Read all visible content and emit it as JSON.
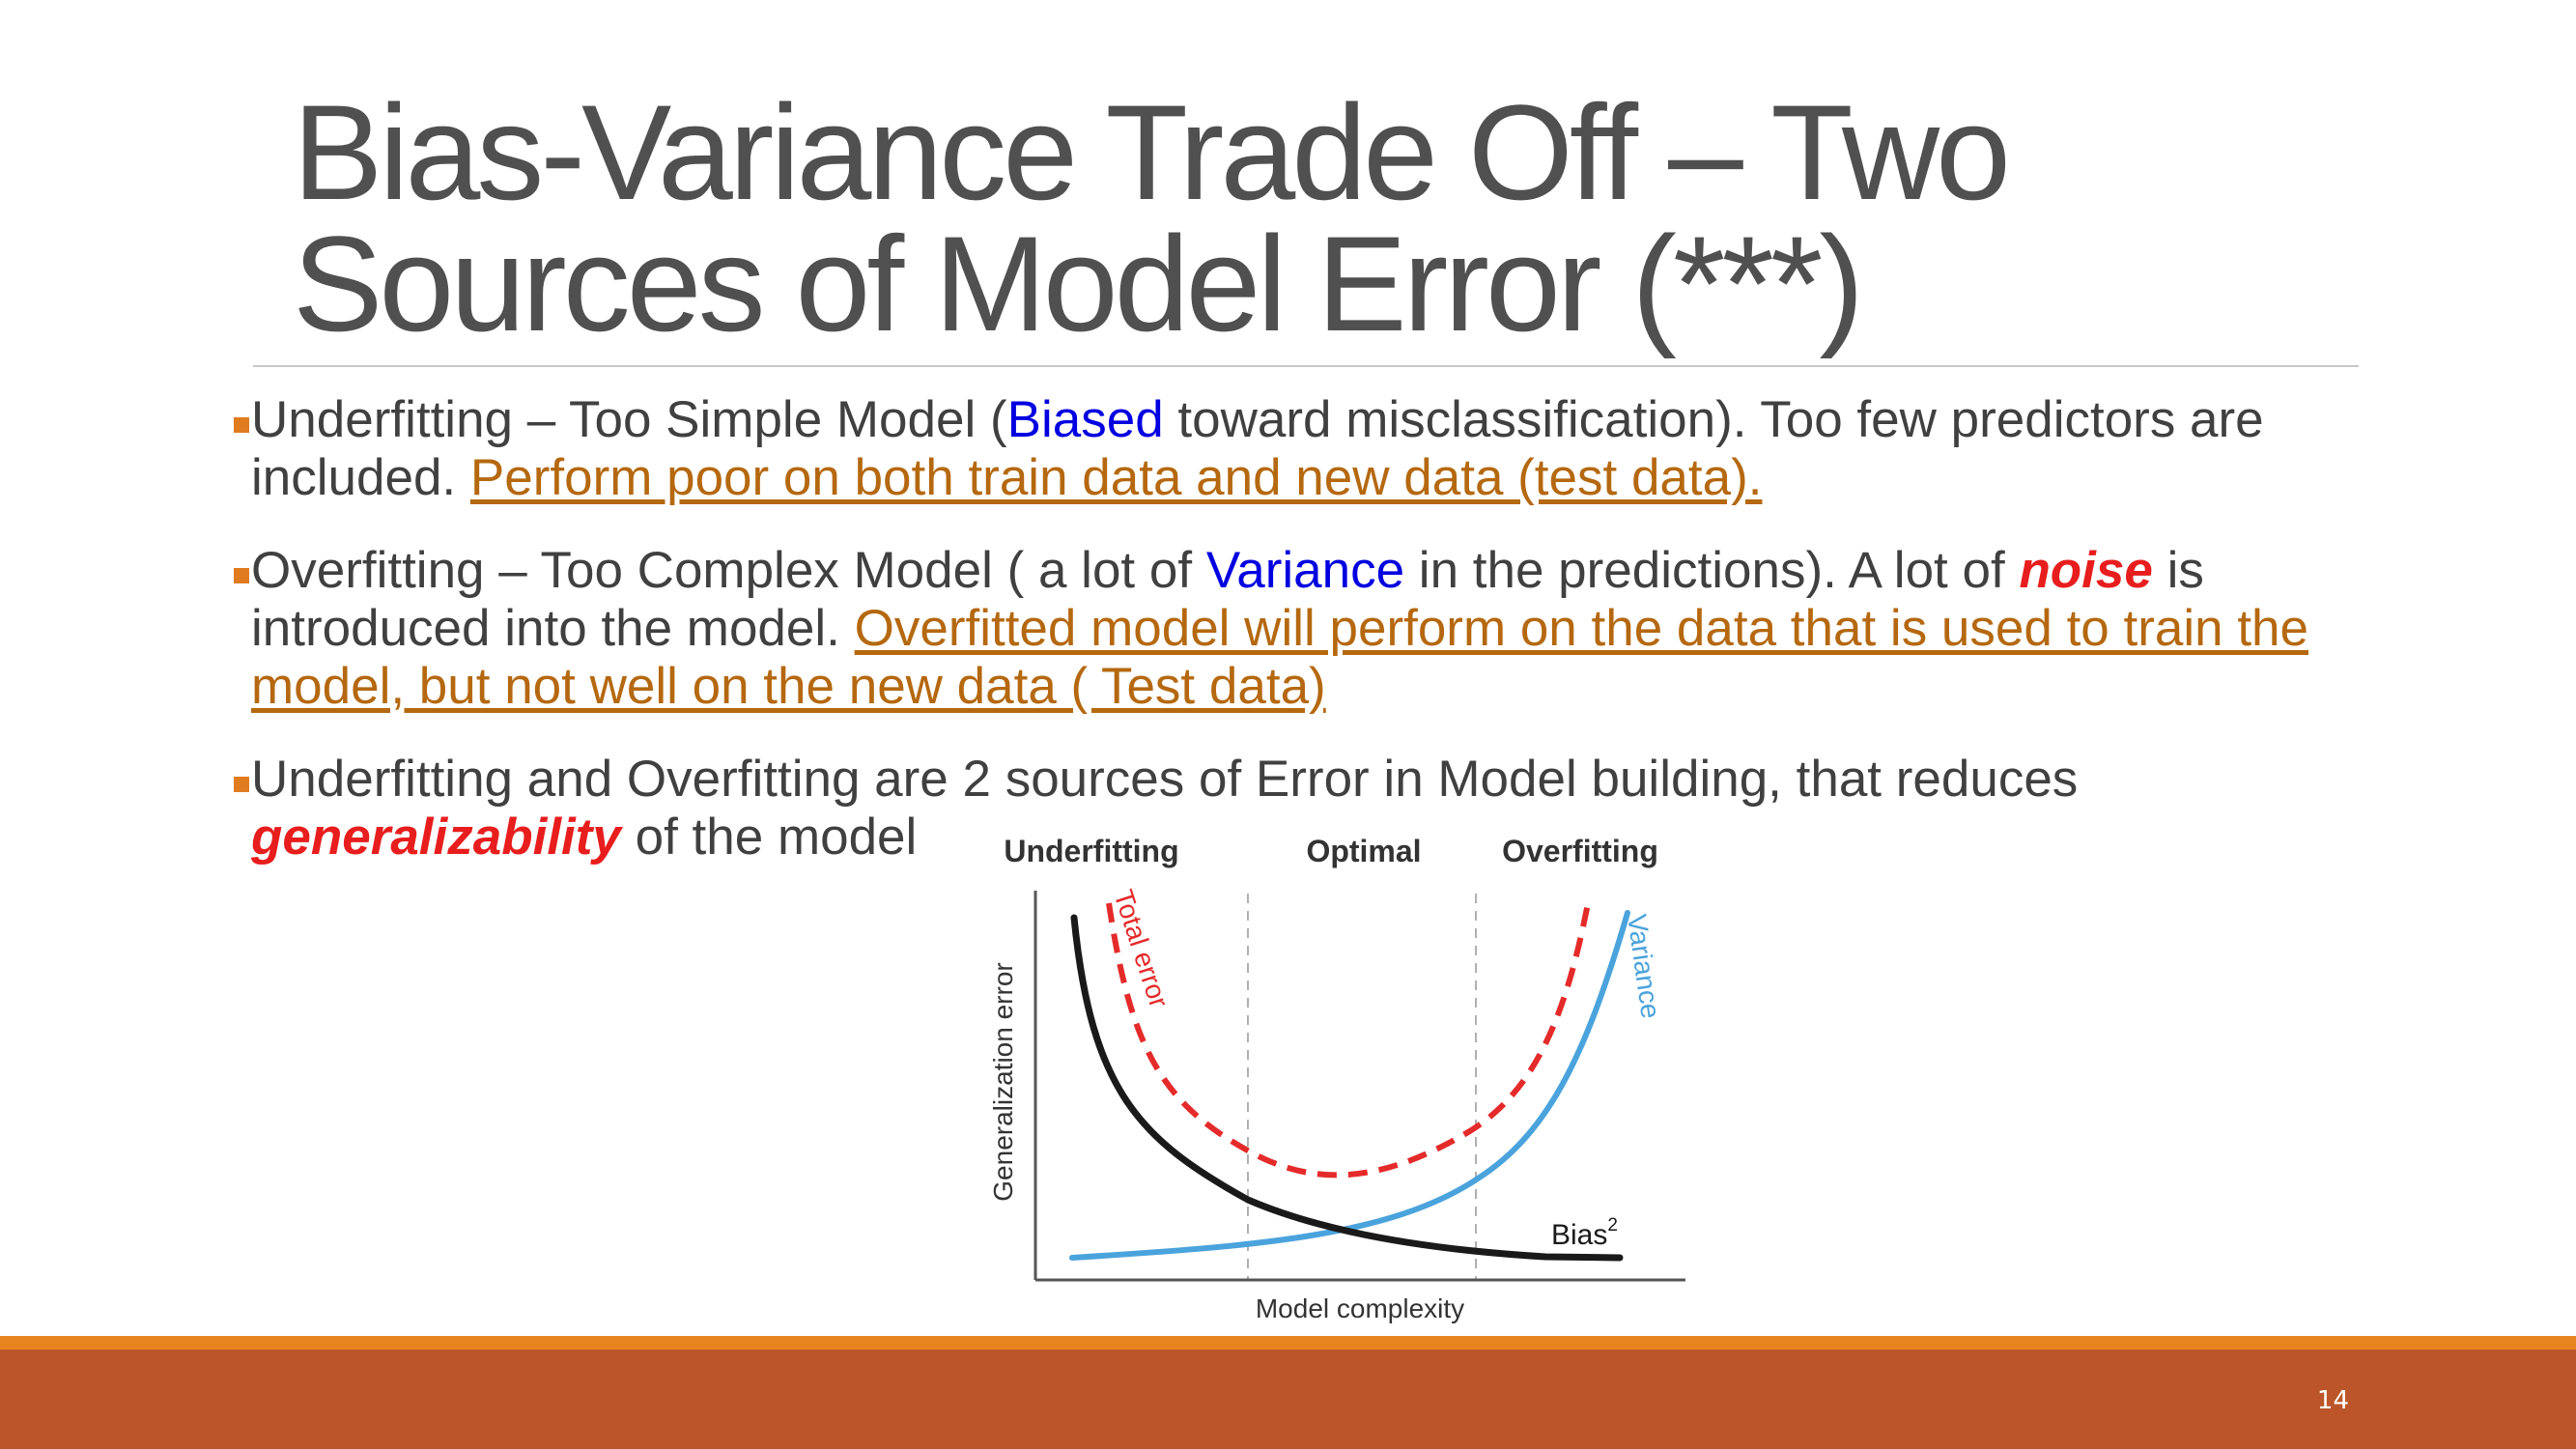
{
  "slide": {
    "title_line1": "Bias-Variance Trade Off – Two",
    "title_line2": "Sources of Model Error (***)",
    "page_number": "14",
    "colors": {
      "accent": "#e8841d",
      "footer": "#bc562a",
      "link": "#b5680f",
      "emphasis": "#e81d1d",
      "keyword": "#0000e0"
    }
  },
  "bullets": [
    {
      "t1": "Underfitting – Too Simple Model (",
      "keyword": "Biased",
      "t2": " toward misclassification). Too few predictors are included. ",
      "link": "Perform poor on both train data and new data (test data)."
    },
    {
      "t1": " Overfitting – Too Complex Model ( a lot of ",
      "keyword": "Variance",
      "t2": " in the predictions). A lot of ",
      "emph": "noise",
      "t3": " is introduced into the model. ",
      "link": "Overfitted model will perform on the data that is used to train the model, but not well on the new data ( Test data)"
    },
    {
      "t1": " Underfitting and Overfitting are 2 sources of Error in Model building, that reduces ",
      "emph": "generalizability",
      "t2": " of the model"
    }
  ],
  "figure": {
    "region_labels": [
      "Underfitting",
      "Optimal",
      "Overfitting"
    ],
    "xlabel": "Model complexity",
    "ylabel": "Generalization error",
    "total_error_label": "Total error",
    "variance_label": "Variance",
    "bias_label": "Bias",
    "bias_superscript": "2",
    "colors": {
      "total_error": "#e52a2a",
      "variance": "#4aa3dc",
      "bias": "#1a1a1a",
      "axis": "#555555",
      "guide": "#b0b0b0"
    }
  }
}
